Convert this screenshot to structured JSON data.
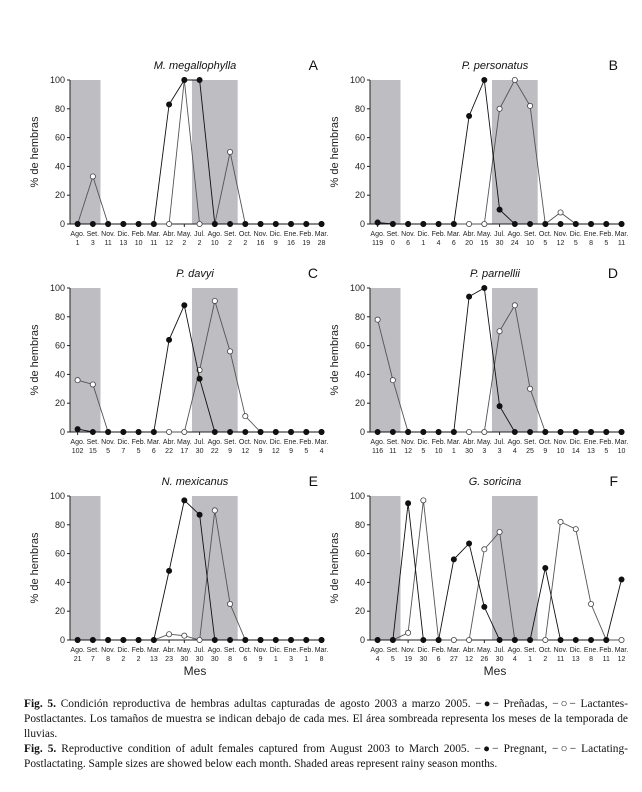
{
  "ylabel": "% de hembras",
  "xlabel": "Mes",
  "months": [
    "Ago.",
    "Set.",
    "Nov.",
    "Dic.",
    "Feb.",
    "Mar.",
    "Abr.",
    "May.",
    "Jul.",
    "Ago.",
    "Set.",
    "Oct.",
    "Nov.",
    "Dic.",
    "Ene.",
    "Feb.",
    "Mar."
  ],
  "shade_color": "#bdbdc2",
  "chart_data": [
    {
      "type": "line",
      "title": "M. megallophylla",
      "letter": "A",
      "ylim": [
        0,
        100
      ],
      "yticks": [
        0,
        20,
        40,
        60,
        80,
        100
      ],
      "shaded": [
        [
          0,
          1
        ],
        [
          8,
          10
        ]
      ],
      "sample_sizes": [
        "1",
        "3",
        "11",
        "13",
        "10",
        "11",
        "12",
        "2",
        "2",
        "10",
        "2",
        "2",
        "16",
        "9",
        "16",
        "19",
        "28"
      ],
      "series": [
        {
          "marker": "filled",
          "values": [
            0,
            0,
            0,
            0,
            0,
            0,
            83,
            100,
            100,
            0,
            0,
            0,
            0,
            0,
            0,
            0,
            0
          ]
        },
        {
          "marker": "open",
          "values": [
            0,
            33,
            0,
            0,
            0,
            0,
            0,
            100,
            0,
            0,
            50,
            0,
            0,
            0,
            0,
            0,
            0
          ]
        }
      ]
    },
    {
      "type": "line",
      "title": "P. personatus",
      "letter": "B",
      "ylim": [
        0,
        100
      ],
      "yticks": [
        0,
        20,
        40,
        60,
        80,
        100
      ],
      "shaded": [
        [
          0,
          1
        ],
        [
          8,
          10
        ]
      ],
      "sample_sizes": [
        "119",
        "0",
        "6",
        "1",
        "4",
        "6",
        "20",
        "15",
        "30",
        "24",
        "10",
        "5",
        "12",
        "5",
        "8",
        "5",
        "11"
      ],
      "series": [
        {
          "marker": "filled",
          "values": [
            1,
            0,
            0,
            0,
            0,
            0,
            75,
            100,
            10,
            0,
            0,
            0,
            0,
            0,
            0,
            0,
            0
          ]
        },
        {
          "marker": "open",
          "values": [
            1,
            0,
            0,
            0,
            0,
            0,
            0,
            0,
            80,
            100,
            82,
            0,
            8,
            0,
            0,
            0,
            0
          ]
        }
      ]
    },
    {
      "type": "line",
      "title": "P. davyi",
      "letter": "C",
      "ylim": [
        0,
        100
      ],
      "yticks": [
        0,
        20,
        40,
        60,
        80,
        100
      ],
      "shaded": [
        [
          0,
          1
        ],
        [
          8,
          10
        ]
      ],
      "sample_sizes": [
        "102",
        "15",
        "5",
        "7",
        "5",
        "6",
        "22",
        "17",
        "30",
        "22",
        "9",
        "12",
        "9",
        "12",
        "9",
        "5",
        "4"
      ],
      "series": [
        {
          "marker": "filled",
          "values": [
            2,
            0,
            0,
            0,
            0,
            0,
            64,
            88,
            37,
            0,
            0,
            0,
            0,
            0,
            0,
            0,
            0
          ]
        },
        {
          "marker": "open",
          "values": [
            36,
            33,
            0,
            0,
            0,
            0,
            0,
            0,
            43,
            91,
            56,
            11,
            0,
            0,
            0,
            0,
            0
          ]
        }
      ]
    },
    {
      "type": "line",
      "title": "P. parnellii",
      "letter": "D",
      "ylim": [
        0,
        100
      ],
      "yticks": [
        0,
        20,
        40,
        60,
        80,
        100
      ],
      "shaded": [
        [
          0,
          1
        ],
        [
          8,
          10
        ]
      ],
      "sample_sizes": [
        "116",
        "11",
        "12",
        "5",
        "10",
        "1",
        "30",
        "3",
        "3",
        "4",
        "25",
        "9",
        "10",
        "14",
        "13",
        "5",
        "10"
      ],
      "series": [
        {
          "marker": "filled",
          "values": [
            0,
            0,
            0,
            0,
            0,
            0,
            94,
            100,
            18,
            0,
            0,
            0,
            0,
            0,
            0,
            0,
            0
          ]
        },
        {
          "marker": "open",
          "values": [
            78,
            36,
            0,
            0,
            0,
            0,
            0,
            0,
            70,
            88,
            30,
            0,
            0,
            0,
            0,
            0,
            0
          ]
        }
      ]
    },
    {
      "type": "line",
      "title": "N. mexicanus",
      "letter": "E",
      "ylim": [
        0,
        100
      ],
      "yticks": [
        0,
        20,
        40,
        60,
        80,
        100
      ],
      "shaded": [
        [
          0,
          1
        ],
        [
          8,
          10
        ]
      ],
      "sample_sizes": [
        "21",
        "7",
        "8",
        "2",
        "2",
        "13",
        "23",
        "30",
        "30",
        "30",
        "8",
        "6",
        "9",
        "1",
        "3",
        "1",
        "8"
      ],
      "series": [
        {
          "marker": "filled",
          "values": [
            0,
            0,
            0,
            0,
            0,
            0,
            48,
            97,
            87,
            0,
            0,
            0,
            0,
            0,
            0,
            0,
            0
          ]
        },
        {
          "marker": "open",
          "values": [
            0,
            0,
            0,
            0,
            0,
            0,
            4,
            3,
            0,
            90,
            25,
            0,
            0,
            0,
            0,
            0,
            0
          ]
        }
      ]
    },
    {
      "type": "line",
      "title": "G. soricina",
      "letter": "F",
      "ylim": [
        0,
        100
      ],
      "yticks": [
        0,
        20,
        40,
        60,
        80,
        100
      ],
      "shaded": [
        [
          0,
          1
        ],
        [
          8,
          10
        ]
      ],
      "sample_sizes": [
        "4",
        "5",
        "19",
        "30",
        "6",
        "27",
        "12",
        "26",
        "30",
        "4",
        "1",
        "2",
        "11",
        "13",
        "8",
        "11",
        "12"
      ],
      "series": [
        {
          "marker": "filled",
          "values": [
            0,
            0,
            95,
            0,
            0,
            56,
            67,
            23,
            0,
            0,
            0,
            50,
            0,
            0,
            0,
            0,
            42
          ]
        },
        {
          "marker": "open",
          "values": [
            0,
            0,
            5,
            97,
            0,
            0,
            0,
            63,
            75,
            0,
            0,
            0,
            82,
            77,
            25,
            0,
            0
          ]
        }
      ]
    }
  ],
  "caption": {
    "es_label": "Fig. 5.",
    "es_text": "Condición reproductiva de hembras adultas capturadas de agosto 2003 a marzo 2005. −●− Preñadas, −○− Lactantes-Postlactantes. Los tamaños de muestra se indican debajo de cada mes. El área sombreada representa los meses de la temporada de lluvias.",
    "en_label": "Fig. 5.",
    "en_text": "Reproductive condition of adult females captured from August 2003 to March 2005. −●− Pregnant, −○− Lactating-Postlactating. Sample sizes are showed below each month. Shaded areas represent rainy season months."
  }
}
